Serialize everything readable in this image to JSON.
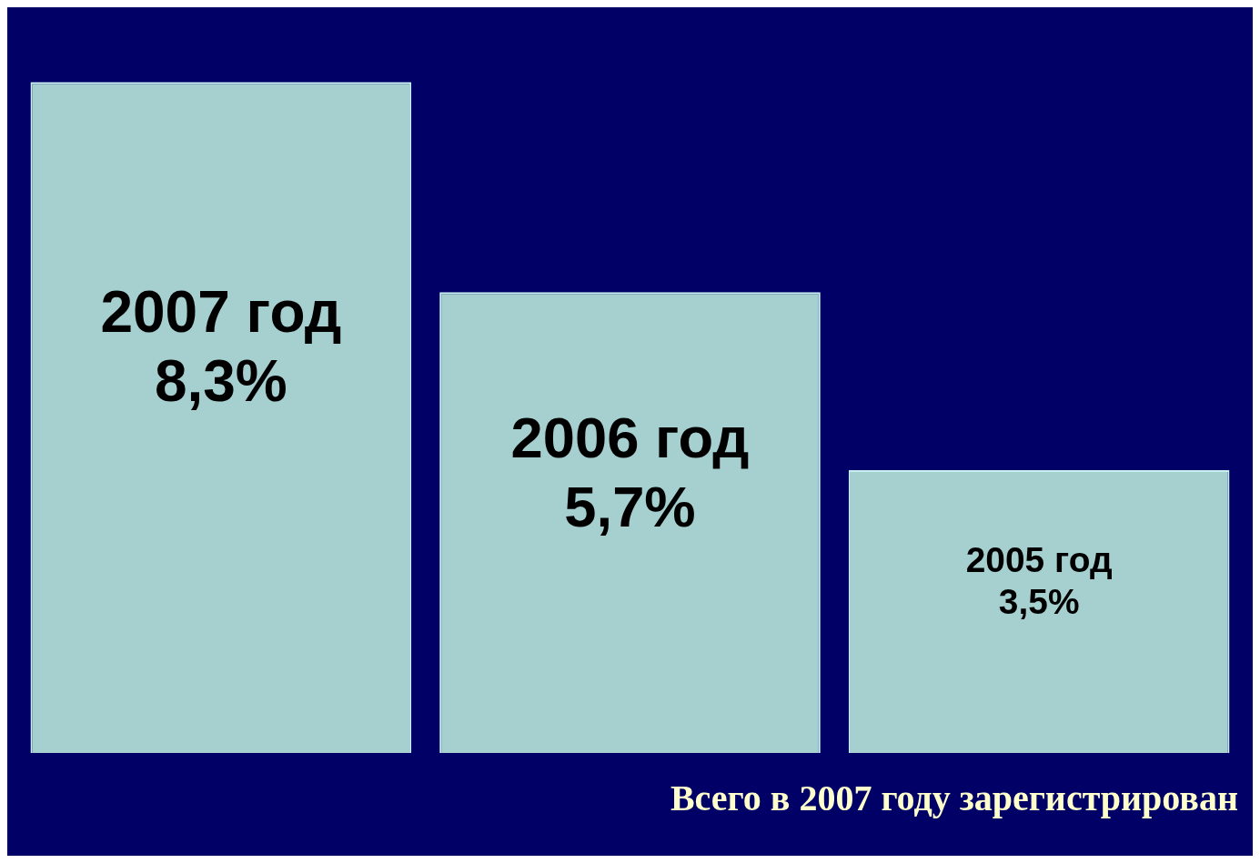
{
  "chart_data": {
    "type": "bar",
    "categories": [
      "2007 год",
      "2006 год",
      "2005 год"
    ],
    "values": [
      8.3,
      5.7,
      3.5
    ],
    "value_labels": [
      "8,3%",
      "5,7%",
      "3,5%"
    ],
    "color": "#a6cfd0",
    "legend": false,
    "annotations": [
      "Всего в 2007 году зарегистрирован"
    ]
  }
}
